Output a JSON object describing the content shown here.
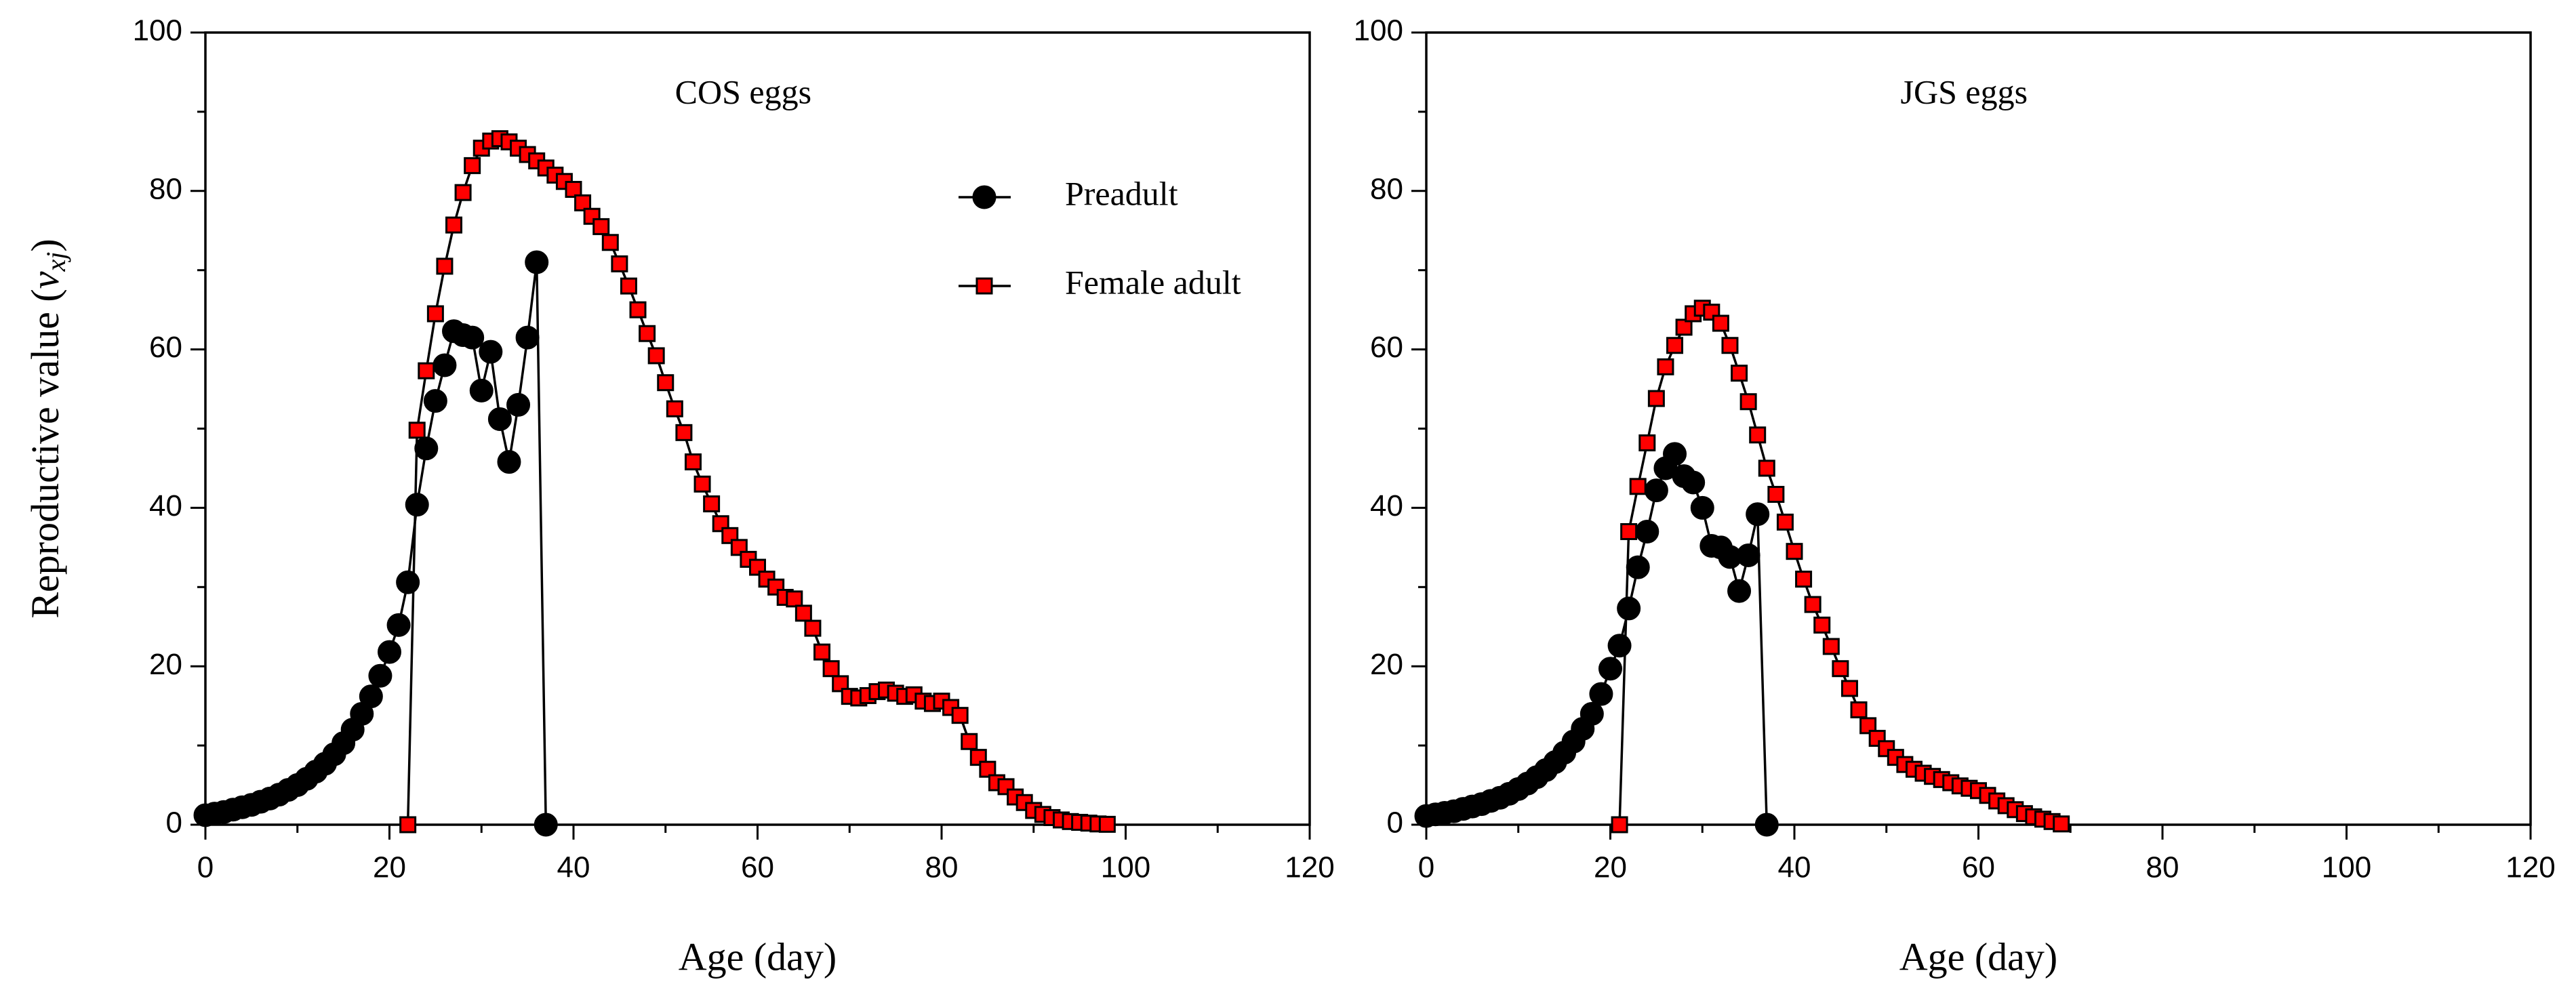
{
  "chart_data": [
    {
      "type": "line",
      "annotation": "COS eggs",
      "xlabel": "Age (day)",
      "ylabel": {
        "text": "Reproductive value (",
        "var": "v",
        "sub": "xj",
        "close": ")"
      },
      "xlim": [
        0,
        120
      ],
      "xticks": [
        0,
        20,
        40,
        60,
        80,
        100,
        120
      ],
      "minor_xticks": [
        10,
        30,
        50,
        70,
        90,
        110
      ],
      "ylim": [
        0,
        100
      ],
      "yticks": [
        0,
        20,
        40,
        60,
        80,
        100
      ],
      "minor_yticks": [
        10,
        30,
        50,
        70,
        90
      ],
      "legend": "upper right",
      "series": [
        {
          "name": "Preadult",
          "color": "#000000",
          "marker": "circle",
          "x": [
            0,
            1,
            2,
            3,
            4,
            5,
            6,
            7,
            8,
            9,
            10,
            11,
            12,
            13,
            14,
            15,
            16,
            17,
            18,
            19,
            20,
            21,
            22,
            23,
            24,
            25,
            26,
            27,
            28,
            29,
            30,
            31,
            32,
            33,
            34,
            35,
            36,
            37
          ],
          "values": [
            1.2,
            1.4,
            1.6,
            1.9,
            2.2,
            2.5,
            2.9,
            3.3,
            3.8,
            4.4,
            5.0,
            5.8,
            6.7,
            7.7,
            8.9,
            10.3,
            12,
            14,
            16.2,
            18.8,
            21.8,
            25.2,
            30.6,
            40.4,
            47.5,
            53.5,
            58,
            62.3,
            61.8,
            61.5,
            54.8,
            59.7,
            51.2,
            45.8,
            53,
            61.5,
            71,
            0
          ]
        },
        {
          "name": "Female adult",
          "color": "#ff0000",
          "marker": "square",
          "x": [
            22,
            23,
            24,
            25,
            26,
            27,
            28,
            29,
            30,
            31,
            32,
            33,
            34,
            35,
            36,
            37,
            38,
            39,
            40,
            41,
            42,
            43,
            44,
            45,
            46,
            47,
            48,
            49,
            50,
            51,
            52,
            53,
            54,
            55,
            56,
            57,
            58,
            59,
            60,
            61,
            62,
            63,
            64,
            65,
            66,
            67,
            68,
            69,
            70,
            71,
            72,
            73,
            74,
            75,
            76,
            77,
            78,
            79,
            80,
            81,
            82,
            83,
            84,
            85,
            86,
            87,
            88,
            89,
            90,
            91,
            92,
            93,
            94,
            95,
            96,
            97,
            98
          ],
          "values": [
            0,
            49.8,
            57.3,
            64.5,
            70.5,
            75.7,
            79.8,
            83.2,
            85.4,
            86.3,
            86.6,
            86.2,
            85.4,
            84.6,
            83.8,
            82.9,
            82.0,
            81.2,
            80.2,
            78.5,
            76.8,
            75.5,
            73.5,
            70.8,
            68,
            65,
            62,
            59.2,
            55.8,
            52.5,
            49.5,
            45.8,
            43,
            40.5,
            38,
            36.5,
            35,
            33.5,
            32.5,
            31,
            30,
            28.7,
            28.5,
            26.7,
            24.8,
            21.8,
            19.7,
            17.8,
            16.2,
            16.0,
            16.3,
            16.8,
            17.0,
            16.6,
            16.2,
            16.4,
            15.6,
            15.3,
            15.6,
            14.8,
            13.8,
            10.5,
            8.5,
            7.0,
            5.3,
            4.8,
            3.5,
            2.8,
            1.8,
            1.3,
            0.9,
            0.6,
            0.4,
            0.3,
            0.2,
            0.1,
            0.05
          ]
        }
      ]
    },
    {
      "type": "line",
      "annotation": "JGS eggs",
      "xlabel": "Age (day)",
      "xlim": [
        0,
        120
      ],
      "xticks": [
        0,
        20,
        40,
        60,
        80,
        100,
        120
      ],
      "minor_xticks": [
        10,
        30,
        50,
        70,
        90,
        110
      ],
      "ylim": [
        0,
        100
      ],
      "yticks": [
        0,
        20,
        40,
        60,
        80,
        100
      ],
      "minor_yticks": [
        10,
        30,
        50,
        70,
        90
      ],
      "series": [
        {
          "color": "#000000",
          "marker": "circle",
          "x": [
            0,
            1,
            2,
            3,
            4,
            5,
            6,
            7,
            8,
            9,
            10,
            11,
            12,
            13,
            14,
            15,
            16,
            17,
            18,
            19,
            20,
            21,
            22,
            23,
            24,
            25,
            26,
            27,
            28,
            29,
            30,
            31,
            32,
            33,
            34,
            35,
            36,
            37
          ],
          "values": [
            1.1,
            1.3,
            1.5,
            1.7,
            2.0,
            2.3,
            2.6,
            3.0,
            3.4,
            3.9,
            4.5,
            5.2,
            6.0,
            6.9,
            7.9,
            9.1,
            10.5,
            12.1,
            14,
            16.5,
            19.7,
            22.6,
            27.3,
            32.5,
            37,
            42.2,
            45,
            46.8,
            44,
            43.2,
            40,
            35.2,
            35,
            33.8,
            29.5,
            34,
            39.2,
            0
          ]
        },
        {
          "color": "#ff0000",
          "marker": "square",
          "x": [
            21,
            22,
            23,
            24,
            25,
            26,
            27,
            28,
            29,
            30,
            31,
            32,
            33,
            34,
            35,
            36,
            37,
            38,
            39,
            40,
            41,
            42,
            43,
            44,
            45,
            46,
            47,
            48,
            49,
            50,
            51,
            52,
            53,
            54,
            55,
            56,
            57,
            58,
            59,
            60,
            61,
            62,
            63,
            64,
            65,
            66,
            67,
            68,
            69
          ],
          "values": [
            0,
            37,
            42.7,
            48.2,
            53.8,
            57.8,
            60.5,
            62.8,
            64.5,
            65.2,
            64.7,
            63.3,
            60.5,
            57,
            53.4,
            49.2,
            45,
            41.7,
            38.2,
            34.5,
            31,
            27.8,
            25.2,
            22.5,
            19.7,
            17.2,
            14.5,
            12.5,
            10.9,
            9.6,
            8.5,
            7.6,
            7.0,
            6.5,
            6.1,
            5.7,
            5.3,
            4.9,
            4.6,
            4.3,
            3.7,
            3.0,
            2.4,
            1.9,
            1.4,
            1.0,
            0.7,
            0.4,
            0.1
          ]
        }
      ]
    }
  ]
}
